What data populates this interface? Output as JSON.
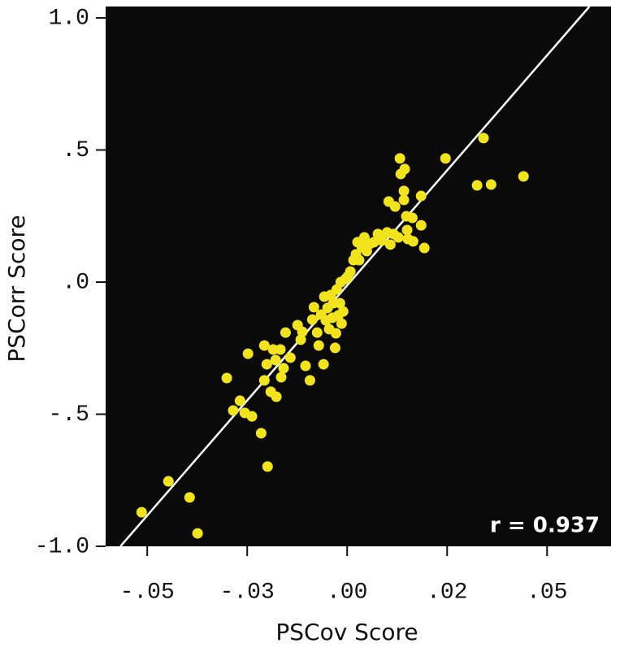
{
  "chart_data": {
    "type": "scatter",
    "x_label": "PSCov Score",
    "y_label": "PSCorr Score",
    "annotation": "r = 0.937",
    "xlim": [
      -0.0604,
      0.066
    ],
    "ylim": [
      -1.0,
      1.043
    ],
    "xticks": [
      {
        "value": -0.05,
        "label": "-.05"
      },
      {
        "value": -0.025,
        "label": "-.03"
      },
      {
        "value": 0,
        "label": ".00"
      },
      {
        "value": 0.025,
        "label": ".02"
      },
      {
        "value": 0.05,
        "label": ".05"
      }
    ],
    "yticks": [
      {
        "value": 1.0,
        "label": "1.0"
      },
      {
        "value": 0.5,
        "label": ".5"
      },
      {
        "value": 0,
        "label": ".0"
      },
      {
        "value": -0.5,
        "label": "-.5"
      },
      {
        "value": -1.0,
        "label": "-1.0"
      }
    ],
    "background": "#0a0a0a",
    "color": "#f2e41c",
    "x": [
      -0.0514,
      -0.0447,
      -0.0394,
      -0.0374,
      -0.0199,
      -0.0215,
      -0.0301,
      -0.0285,
      -0.0268,
      -0.0256,
      -0.0238,
      -0.0248,
      -0.0207,
      -0.0207,
      -0.0201,
      -0.0191,
      -0.0177,
      -0.0185,
      -0.0179,
      -0.0167,
      -0.0165,
      -0.0159,
      -0.0154,
      -0.0142,
      -0.0124,
      -0.0116,
      -0.0112,
      -0.0104,
      -0.0093,
      -0.0087,
      -0.0083,
      -0.0075,
      -0.0071,
      -0.0065,
      -0.0059,
      -0.0057,
      -0.0053,
      -0.0049,
      -0.0045,
      -0.0041,
      -0.0037,
      -0.0035,
      -0.003,
      -0.0028,
      -0.0026,
      -0.0022,
      -0.0018,
      -0.0016,
      -0.0014,
      -0.001,
      -0.0004,
      0.0002,
      0.0008,
      0.0016,
      0.0022,
      0.0026,
      0.003,
      0.0037,
      0.0043,
      0.0049,
      0.0057,
      0.0067,
      0.0077,
      0.0087,
      0.01,
      0.0108,
      0.0104,
      0.0116,
      0.012,
      0.0128,
      0.0132,
      0.0134,
      0.0142,
      0.0144,
      0.0148,
      0.015,
      0.0152,
      0.0163,
      0.0185,
      0.0185,
      0.0193,
      0.0246,
      0.0325,
      0.0341,
      0.036,
      0.0441,
      0.0165,
      0.0142
    ],
    "y": [
      -0.871,
      -0.754,
      -0.815,
      -0.951,
      -0.698,
      -0.572,
      -0.363,
      -0.486,
      -0.449,
      -0.495,
      -0.508,
      -0.271,
      -0.24,
      -0.372,
      -0.311,
      -0.415,
      -0.434,
      -0.255,
      -0.295,
      -0.255,
      -0.36,
      -0.326,
      -0.191,
      -0.286,
      -0.163,
      -0.218,
      -0.188,
      -0.317,
      -0.372,
      -0.142,
      -0.095,
      -0.191,
      -0.24,
      -0.123,
      -0.311,
      -0.055,
      -0.145,
      -0.098,
      -0.178,
      -0.049,
      -0.135,
      -0.08,
      -0.249,
      -0.194,
      -0.028,
      -0.126,
      -0.08,
      0.0,
      -0.157,
      -0.111,
      0.012,
      0.022,
      0.04,
      0.083,
      0.105,
      0.151,
      0.083,
      0.132,
      0.169,
      0.117,
      0.145,
      0.151,
      0.182,
      0.157,
      0.188,
      0.142,
      0.305,
      0.182,
      0.286,
      0.169,
      0.468,
      0.409,
      0.311,
      0.428,
      0.249,
      0.197,
      0.163,
      0.243,
      0.326,
      0.215,
      0.129,
      0.468,
      0.366,
      0.545,
      0.369,
      0.4,
      0.154,
      0.345
    ],
    "fit_line": {
      "x": [
        -0.0567,
        0.0606
      ],
      "y": [
        -1.0,
        1.043
      ],
      "color": "#ffffff"
    }
  }
}
